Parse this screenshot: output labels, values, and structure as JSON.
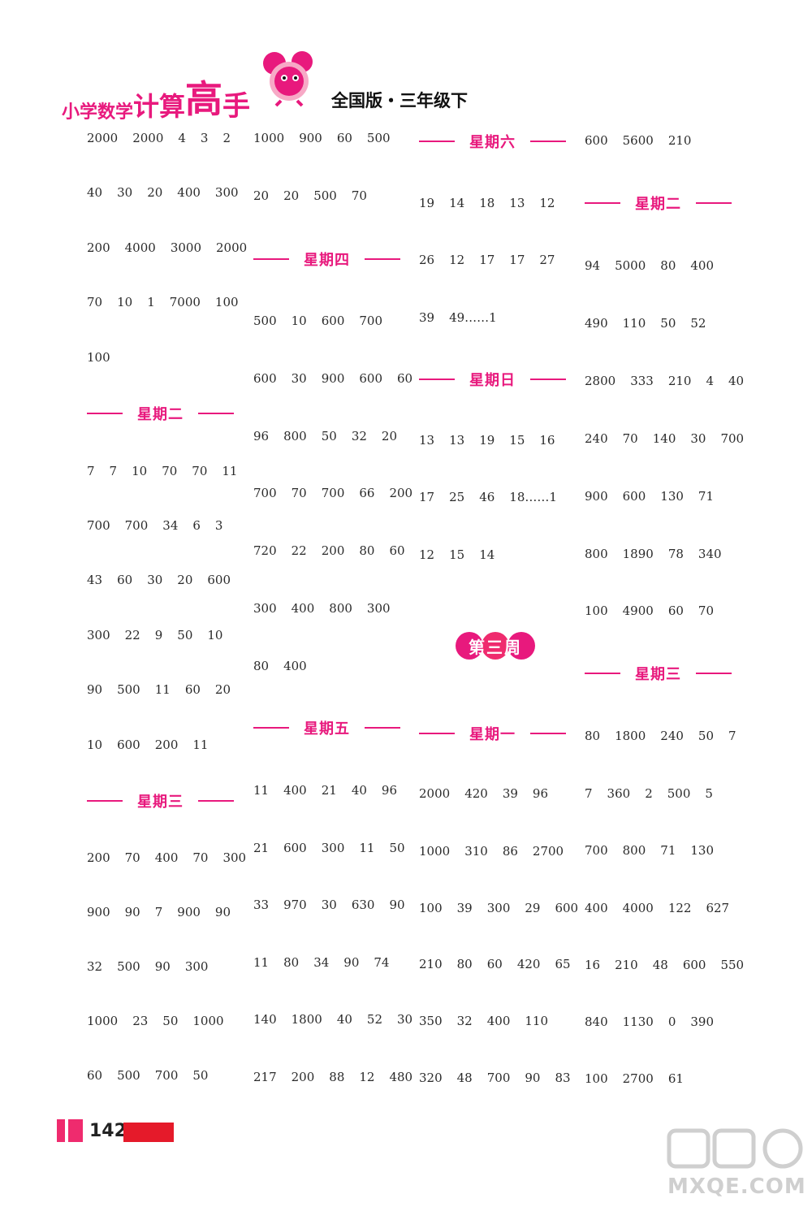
{
  "header": {
    "brand_part1": "小学数学",
    "brand_part2": "计算",
    "brand_part3": "高",
    "brand_part4": "手",
    "edition": "全国版・三年级下"
  },
  "accent_color": "#e8197d",
  "columns": [
    {
      "blocks": [
        {
          "type": "row",
          "values": [
            "2000",
            "2000",
            "4",
            "3",
            "2"
          ]
        },
        {
          "type": "row",
          "values": [
            "40",
            "30",
            "20",
            "400",
            "300"
          ]
        },
        {
          "type": "row",
          "values": [
            "200",
            "4000",
            "3000",
            "2000"
          ]
        },
        {
          "type": "row",
          "values": [
            "70",
            "10",
            "1",
            "7000",
            "100"
          ]
        },
        {
          "type": "row",
          "values": [
            "100"
          ]
        },
        {
          "type": "day",
          "label": "星期二"
        },
        {
          "type": "row",
          "values": [
            "7",
            "7",
            "10",
            "70",
            "70",
            "11"
          ]
        },
        {
          "type": "row",
          "values": [
            "700",
            "700",
            "34",
            "6",
            "3"
          ]
        },
        {
          "type": "row",
          "values": [
            "43",
            "60",
            "30",
            "20",
            "600"
          ]
        },
        {
          "type": "row",
          "values": [
            "300",
            "22",
            "9",
            "50",
            "10"
          ]
        },
        {
          "type": "row",
          "values": [
            "90",
            "500",
            "11",
            "60",
            "20"
          ]
        },
        {
          "type": "row",
          "values": [
            "10",
            "600",
            "200",
            "11"
          ]
        },
        {
          "type": "day",
          "label": "星期三"
        },
        {
          "type": "row",
          "values": [
            "200",
            "70",
            "400",
            "70",
            "300"
          ]
        },
        {
          "type": "row",
          "values": [
            "900",
            "90",
            "7",
            "900",
            "90"
          ]
        },
        {
          "type": "row",
          "values": [
            "32",
            "500",
            "90",
            "300"
          ]
        },
        {
          "type": "row",
          "values": [
            "1000",
            "23",
            "50",
            "1000"
          ]
        },
        {
          "type": "row",
          "values": [
            "60",
            "500",
            "700",
            "50"
          ]
        }
      ]
    },
    {
      "blocks": [
        {
          "type": "row",
          "values": [
            "1000",
            "900",
            "60",
            "500"
          ]
        },
        {
          "type": "row",
          "values": [
            "20",
            "20",
            "500",
            "70"
          ]
        },
        {
          "type": "day",
          "label": "星期四"
        },
        {
          "type": "row",
          "values": [
            "500",
            "10",
            "600",
            "700"
          ]
        },
        {
          "type": "row",
          "values": [
            "600",
            "30",
            "900",
            "600",
            "60"
          ]
        },
        {
          "type": "row",
          "values": [
            "96",
            "800",
            "50",
            "32",
            "20"
          ]
        },
        {
          "type": "row",
          "values": [
            "700",
            "70",
            "700",
            "66",
            "200"
          ]
        },
        {
          "type": "row",
          "values": [
            "720",
            "22",
            "200",
            "80",
            "60"
          ]
        },
        {
          "type": "row",
          "values": [
            "300",
            "400",
            "800",
            "300"
          ]
        },
        {
          "type": "row",
          "values": [
            "80",
            "400"
          ]
        },
        {
          "type": "day",
          "label": "星期五"
        },
        {
          "type": "row",
          "values": [
            "11",
            "400",
            "21",
            "40",
            "96"
          ]
        },
        {
          "type": "row",
          "values": [
            "21",
            "600",
            "300",
            "11",
            "50"
          ]
        },
        {
          "type": "row",
          "values": [
            "33",
            "970",
            "30",
            "630",
            "90"
          ]
        },
        {
          "type": "row",
          "values": [
            "11",
            "80",
            "34",
            "90",
            "74"
          ]
        },
        {
          "type": "row",
          "values": [
            "140",
            "1800",
            "40",
            "52",
            "30"
          ]
        },
        {
          "type": "row",
          "values": [
            "217",
            "200",
            "88",
            "12",
            "480"
          ]
        }
      ]
    },
    {
      "blocks": [
        {
          "type": "day",
          "label": "星期六"
        },
        {
          "type": "row",
          "values": [
            "19",
            "14",
            "18",
            "13",
            "12"
          ]
        },
        {
          "type": "row",
          "values": [
            "26",
            "12",
            "17",
            "17",
            "27"
          ]
        },
        {
          "type": "row",
          "values": [
            "39",
            "49……1"
          ]
        },
        {
          "type": "day",
          "label": "星期日"
        },
        {
          "type": "row",
          "values": [
            "13",
            "13",
            "19",
            "15",
            "16"
          ]
        },
        {
          "type": "row",
          "values": [
            "17",
            "25",
            "46",
            "18……1"
          ]
        },
        {
          "type": "row",
          "values": [
            "12",
            "15",
            "14"
          ]
        },
        {
          "type": "week",
          "label": "第三周"
        },
        {
          "type": "day",
          "label": "星期一"
        },
        {
          "type": "row",
          "values": [
            "2000",
            "420",
            "39",
            "96"
          ]
        },
        {
          "type": "row",
          "values": [
            "1000",
            "310",
            "86",
            "2700"
          ]
        },
        {
          "type": "row",
          "values": [
            "100",
            "39",
            "300",
            "29",
            "600"
          ]
        },
        {
          "type": "row",
          "values": [
            "210",
            "80",
            "60",
            "420",
            "65"
          ]
        },
        {
          "type": "row",
          "values": [
            "350",
            "32",
            "400",
            "110"
          ]
        },
        {
          "type": "row",
          "values": [
            "320",
            "48",
            "700",
            "90",
            "83"
          ]
        }
      ]
    },
    {
      "blocks": [
        {
          "type": "row",
          "values": [
            "600",
            "5600",
            "210"
          ]
        },
        {
          "type": "day",
          "label": "星期二"
        },
        {
          "type": "row",
          "values": [
            "94",
            "5000",
            "80",
            "400"
          ]
        },
        {
          "type": "row",
          "values": [
            "490",
            "110",
            "50",
            "52"
          ]
        },
        {
          "type": "row",
          "values": [
            "2800",
            "333",
            "210",
            "4",
            "40"
          ]
        },
        {
          "type": "row",
          "values": [
            "240",
            "70",
            "140",
            "30",
            "700"
          ]
        },
        {
          "type": "row",
          "values": [
            "900",
            "600",
            "130",
            "71"
          ]
        },
        {
          "type": "row",
          "values": [
            "800",
            "1890",
            "78",
            "340"
          ]
        },
        {
          "type": "row",
          "values": [
            "100",
            "4900",
            "60",
            "70"
          ]
        },
        {
          "type": "day",
          "label": "星期三"
        },
        {
          "type": "row",
          "values": [
            "80",
            "1800",
            "240",
            "50",
            "7"
          ]
        },
        {
          "type": "row",
          "values": [
            "7",
            "360",
            "2",
            "500",
            "5"
          ]
        },
        {
          "type": "row",
          "values": [
            "700",
            "800",
            "71",
            "130"
          ]
        },
        {
          "type": "row",
          "values": [
            "400",
            "4000",
            "122",
            "627"
          ]
        },
        {
          "type": "row",
          "values": [
            "16",
            "210",
            "48",
            "600",
            "550"
          ]
        },
        {
          "type": "row",
          "values": [
            "840",
            "1130",
            "0",
            "390"
          ]
        },
        {
          "type": "row",
          "values": [
            "100",
            "2700",
            "61"
          ]
        }
      ]
    }
  ],
  "footer": {
    "page_number": "142",
    "watermark_text": "MXQE.COM",
    "watermark_logo_text": "答案圈"
  }
}
